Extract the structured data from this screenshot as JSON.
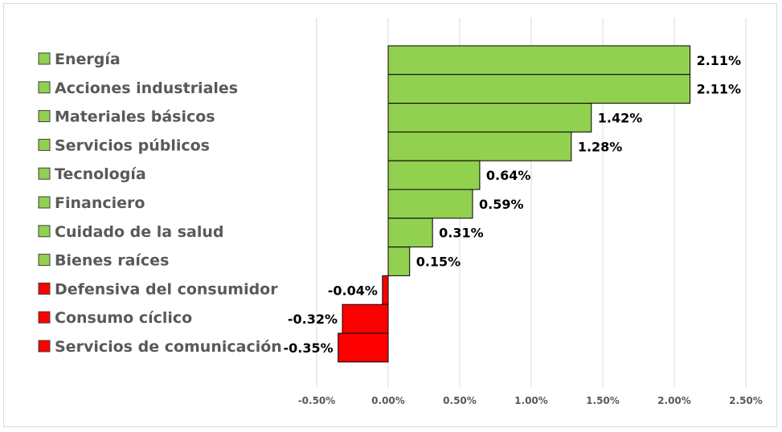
{
  "chart_data": {
    "type": "bar",
    "orientation": "horizontal",
    "title": "",
    "xlabel": "",
    "ylabel": "",
    "categories": [
      "Energía",
      "Acciones industriales",
      "Materiales básicos",
      "Servicios públicos",
      "Tecnología",
      "Financiero",
      "Cuidado de la salud",
      "Bienes raíces",
      "Defensiva del consumidor",
      "Consumo cíclico",
      "Servicios de comunicación"
    ],
    "values": [
      2.11,
      2.11,
      1.42,
      1.28,
      0.64,
      0.59,
      0.31,
      0.15,
      -0.04,
      -0.32,
      -0.35
    ],
    "value_labels": [
      "2.11%",
      "2.11%",
      "1.42%",
      "1.28%",
      "0.64%",
      "0.59%",
      "0.31%",
      "0.15%",
      "-0.04%",
      "-0.32%",
      "-0.35%"
    ],
    "xlim": [
      -0.5,
      2.5
    ],
    "xticks": [
      -0.5,
      0,
      0.5,
      1,
      1.5,
      2,
      2.5
    ],
    "xtick_labels": [
      "-0.50%",
      "0.00%",
      "0.50%",
      "1.00%",
      "1.50%",
      "2.00%",
      "2.50%"
    ],
    "grid": "vertical",
    "legend": "left",
    "colors": {
      "positive": "#92d050",
      "negative": "#ff0000",
      "bar_border": "#000000",
      "gridline": "#d9d9d9",
      "category_text": "#595959",
      "value_text": "#000000"
    }
  }
}
